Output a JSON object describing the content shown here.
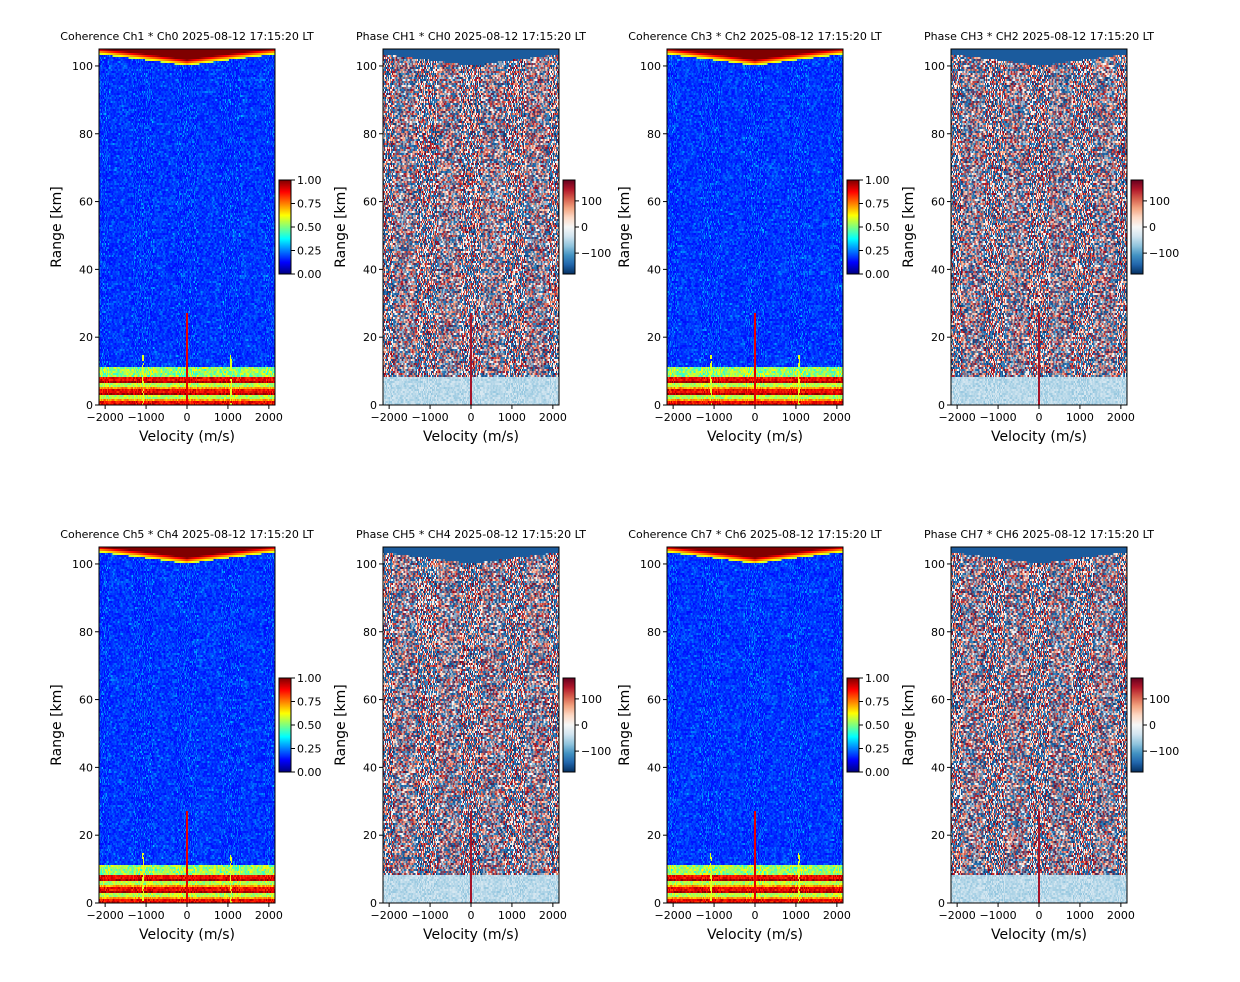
{
  "figure": {
    "colormaps": {
      "coherence": [
        "#00007f",
        "#0000ff",
        "#007fff",
        "#00ffff",
        "#7fff7f",
        "#ffff00",
        "#ff7f00",
        "#ff0000",
        "#7f0000"
      ],
      "phase": [
        "#053061",
        "#2166ac",
        "#4393c3",
        "#92c5de",
        "#d1e5f0",
        "#f7f7f7",
        "#fddbc7",
        "#f4a582",
        "#d6604d",
        "#b2182b",
        "#67001f"
      ]
    }
  },
  "chart_data": [
    {
      "type": "heatmap",
      "kind": "coherence",
      "title": "Coherence Ch1 * Ch0 2025-08-12 17:15:20 LT",
      "xlabel": "Velocity (m/s)",
      "ylabel": "Range [km]",
      "xlim": [
        -2150,
        2150
      ],
      "ylim": [
        0,
        105
      ],
      "xticks": [
        -2000,
        -1000,
        0,
        1000,
        2000
      ],
      "xtick_labels": [
        "−2000",
        "−1000",
        "0",
        "1000",
        "2000"
      ],
      "yticks": [
        0,
        20,
        40,
        60,
        80,
        100
      ],
      "ytick_labels": [
        "0",
        "20",
        "40",
        "60",
        "80",
        "100"
      ],
      "colorbar": {
        "min": 0,
        "max": 1,
        "ticks": [
          0,
          0.25,
          0.5,
          0.75,
          1
        ],
        "tick_labels": [
          "0.00",
          "0.25",
          "0.50",
          "0.75",
          "1.00"
        ]
      }
    },
    {
      "type": "heatmap",
      "kind": "phase",
      "title": "Phase CH1 * CH0 2025-08-12 17:15:20 LT",
      "xlabel": "Velocity (m/s)",
      "ylabel": "Range [km]",
      "xlim": [
        -2150,
        2150
      ],
      "ylim": [
        0,
        105
      ],
      "xticks": [
        -2000,
        -1000,
        0,
        1000,
        2000
      ],
      "xtick_labels": [
        "−2000",
        "−1000",
        "0",
        "1000",
        "2000"
      ],
      "yticks": [
        0,
        20,
        40,
        60,
        80,
        100
      ],
      "ytick_labels": [
        "0",
        "20",
        "40",
        "60",
        "80",
        "100"
      ],
      "colorbar": {
        "min": -180,
        "max": 180,
        "ticks": [
          -100,
          0,
          100
        ],
        "tick_labels": [
          "−100",
          "0",
          "100"
        ]
      }
    },
    {
      "type": "heatmap",
      "kind": "coherence",
      "title": "Coherence Ch3 * Ch2 2025-08-12 17:15:20 LT",
      "xlabel": "Velocity (m/s)",
      "ylabel": "Range [km]",
      "xlim": [
        -2150,
        2150
      ],
      "ylim": [
        0,
        105
      ],
      "xticks": [
        -2000,
        -1000,
        0,
        1000,
        2000
      ],
      "xtick_labels": [
        "−2000",
        "−1000",
        "0",
        "1000",
        "2000"
      ],
      "yticks": [
        0,
        20,
        40,
        60,
        80,
        100
      ],
      "ytick_labels": [
        "0",
        "20",
        "40",
        "60",
        "80",
        "100"
      ],
      "colorbar": {
        "min": 0,
        "max": 1,
        "ticks": [
          0,
          0.25,
          0.5,
          0.75,
          1
        ],
        "tick_labels": [
          "0.00",
          "0.25",
          "0.50",
          "0.75",
          "1.00"
        ]
      }
    },
    {
      "type": "heatmap",
      "kind": "phase",
      "title": "Phase CH3 * CH2 2025-08-12 17:15:20 LT",
      "xlabel": "Velocity (m/s)",
      "ylabel": "Range [km]",
      "xlim": [
        -2150,
        2150
      ],
      "ylim": [
        0,
        105
      ],
      "xticks": [
        -2000,
        -1000,
        0,
        1000,
        2000
      ],
      "xtick_labels": [
        "−2000",
        "−1000",
        "0",
        "1000",
        "2000"
      ],
      "yticks": [
        0,
        20,
        40,
        60,
        80,
        100
      ],
      "ytick_labels": [
        "0",
        "20",
        "40",
        "60",
        "80",
        "100"
      ],
      "colorbar": {
        "min": -180,
        "max": 180,
        "ticks": [
          -100,
          0,
          100
        ],
        "tick_labels": [
          "−100",
          "0",
          "100"
        ]
      }
    },
    {
      "type": "heatmap",
      "kind": "coherence",
      "title": "Coherence Ch5 * Ch4 2025-08-12 17:15:20 LT",
      "xlabel": "Velocity (m/s)",
      "ylabel": "Range [km]",
      "xlim": [
        -2150,
        2150
      ],
      "ylim": [
        0,
        105
      ],
      "xticks": [
        -2000,
        -1000,
        0,
        1000,
        2000
      ],
      "xtick_labels": [
        "−2000",
        "−1000",
        "0",
        "1000",
        "2000"
      ],
      "yticks": [
        0,
        20,
        40,
        60,
        80,
        100
      ],
      "ytick_labels": [
        "0",
        "20",
        "40",
        "60",
        "80",
        "100"
      ],
      "colorbar": {
        "min": 0,
        "max": 1,
        "ticks": [
          0,
          0.25,
          0.5,
          0.75,
          1
        ],
        "tick_labels": [
          "0.00",
          "0.25",
          "0.50",
          "0.75",
          "1.00"
        ]
      }
    },
    {
      "type": "heatmap",
      "kind": "phase",
      "title": "Phase CH5 * CH4 2025-08-12 17:15:20 LT",
      "xlabel": "Velocity (m/s)",
      "ylabel": "Range [km]",
      "xlim": [
        -2150,
        2150
      ],
      "ylim": [
        0,
        105
      ],
      "xticks": [
        -2000,
        -1000,
        0,
        1000,
        2000
      ],
      "xtick_labels": [
        "−2000",
        "−1000",
        "0",
        "1000",
        "2000"
      ],
      "yticks": [
        0,
        20,
        40,
        60,
        80,
        100
      ],
      "ytick_labels": [
        "0",
        "20",
        "40",
        "60",
        "80",
        "100"
      ],
      "colorbar": {
        "min": -180,
        "max": 180,
        "ticks": [
          -100,
          0,
          100
        ],
        "tick_labels": [
          "−100",
          "0",
          "100"
        ]
      }
    },
    {
      "type": "heatmap",
      "kind": "coherence",
      "title": "Coherence Ch7 * Ch6 2025-08-12 17:15:20 LT",
      "xlabel": "Velocity (m/s)",
      "ylabel": "Range [km]",
      "xlim": [
        -2150,
        2150
      ],
      "ylim": [
        0,
        105
      ],
      "xticks": [
        -2000,
        -1000,
        0,
        1000,
        2000
      ],
      "xtick_labels": [
        "−2000",
        "−1000",
        "0",
        "1000",
        "2000"
      ],
      "yticks": [
        0,
        20,
        40,
        60,
        80,
        100
      ],
      "ytick_labels": [
        "0",
        "20",
        "40",
        "60",
        "80",
        "100"
      ],
      "colorbar": {
        "min": 0,
        "max": 1,
        "ticks": [
          0,
          0.25,
          0.5,
          0.75,
          1
        ],
        "tick_labels": [
          "0.00",
          "0.25",
          "0.50",
          "0.75",
          "1.00"
        ]
      }
    },
    {
      "type": "heatmap",
      "kind": "phase",
      "title": "Phase CH7 * CH6 2025-08-12 17:15:20 LT",
      "xlabel": "Velocity (m/s)",
      "ylabel": "Range [km]",
      "xlim": [
        -2150,
        2150
      ],
      "ylim": [
        0,
        105
      ],
      "xticks": [
        -2000,
        -1000,
        0,
        1000,
        2000
      ],
      "xtick_labels": [
        "−2000",
        "−1000",
        "0",
        "1000",
        "2000"
      ],
      "yticks": [
        0,
        20,
        40,
        60,
        80,
        100
      ],
      "ytick_labels": [
        "0",
        "20",
        "40",
        "60",
        "80",
        "100"
      ],
      "colorbar": {
        "min": -180,
        "max": 180,
        "ticks": [
          -100,
          0,
          100
        ],
        "tick_labels": [
          "−100",
          "0",
          "100"
        ]
      }
    }
  ]
}
